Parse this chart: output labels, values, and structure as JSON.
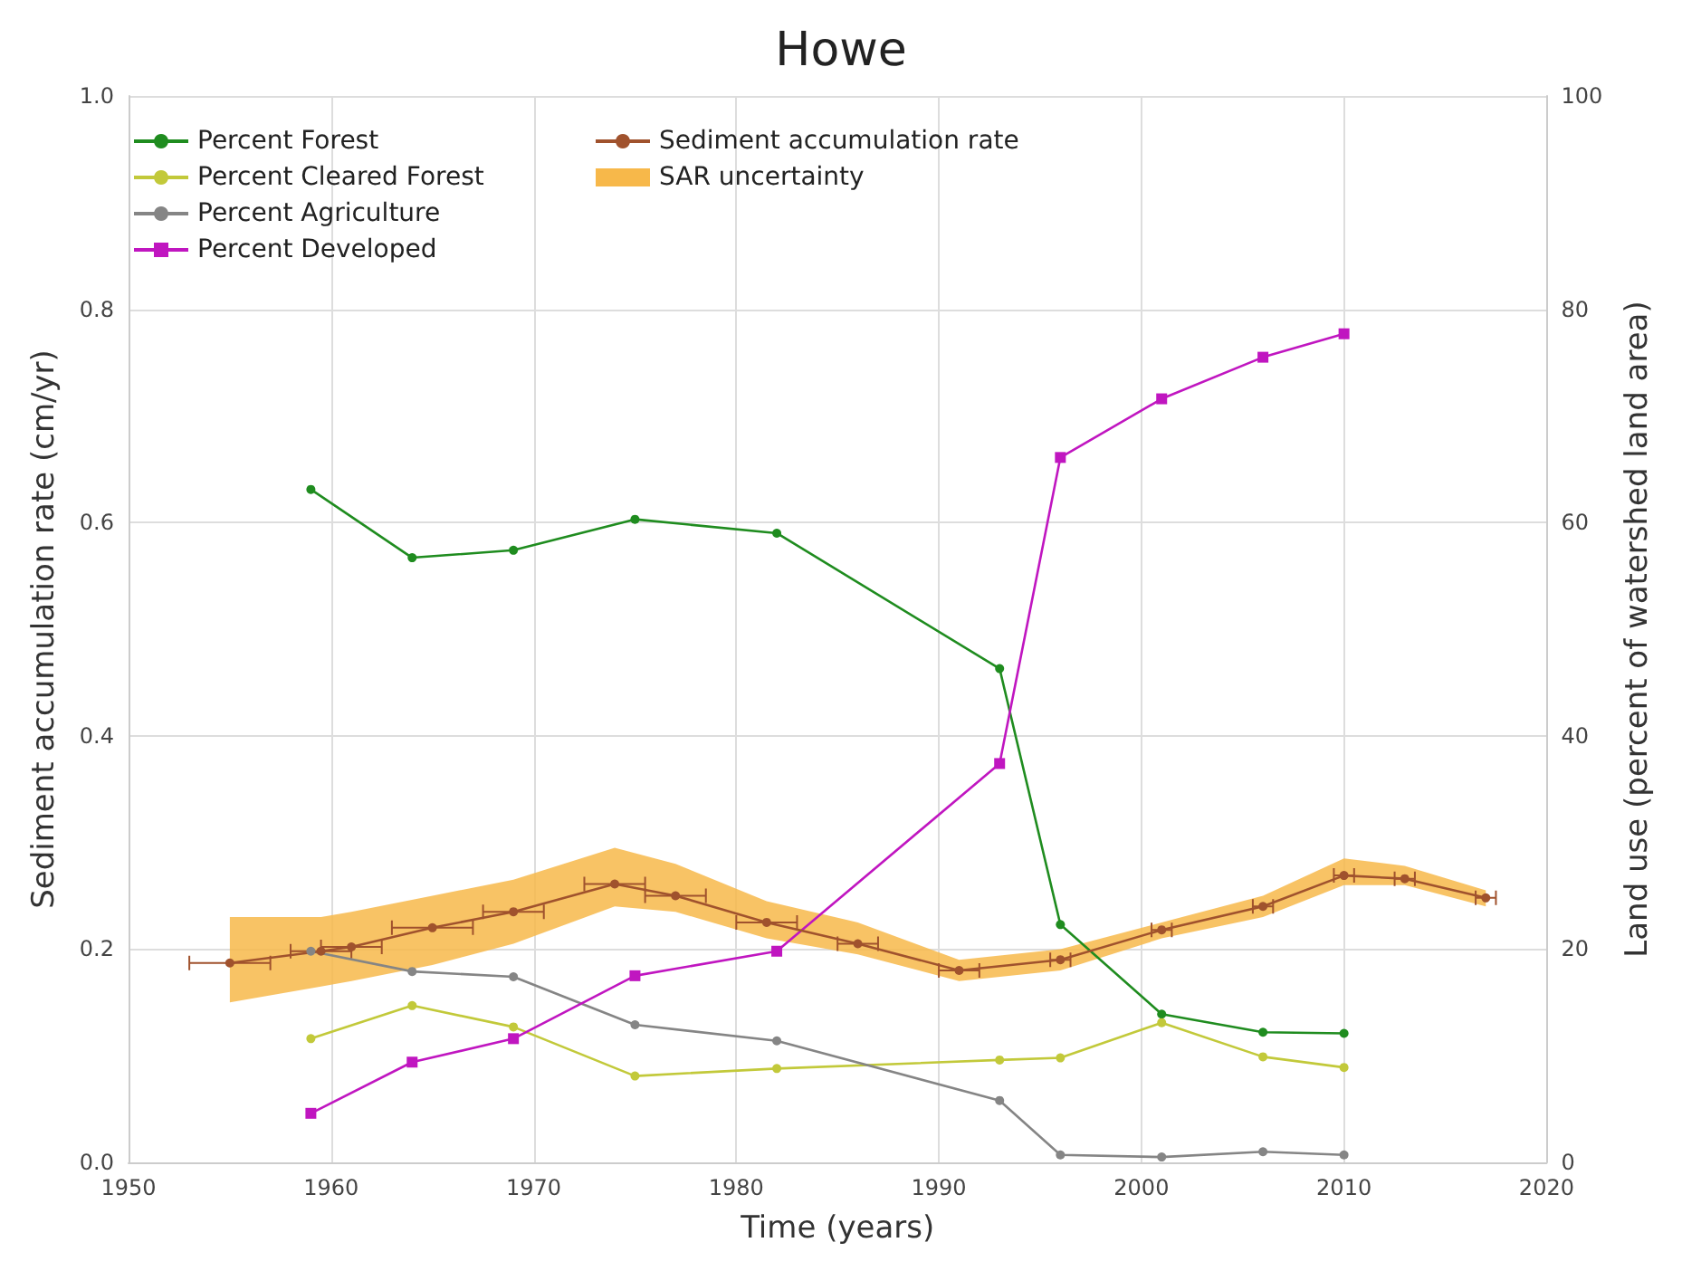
{
  "chart_data": {
    "type": "line",
    "title": "Howe",
    "xlabel": "Time (years)",
    "ylabel": "Sediment accumulation rate (cm/yr)",
    "y2label": "Land use (percent of watershed land area)",
    "xlim": [
      1950,
      2020
    ],
    "xticks": [
      1950,
      1960,
      1970,
      1980,
      1990,
      2000,
      2010,
      2020
    ],
    "ylim": [
      0,
      1
    ],
    "yticks": [
      {
        "value": 0,
        "label": "0.0"
      },
      {
        "value": 0.2,
        "label": "0.2"
      },
      {
        "value": 0.4,
        "label": "0.4"
      },
      {
        "value": 0.6,
        "label": "0.6"
      },
      {
        "value": 0.8,
        "label": "0.8"
      },
      {
        "value": 1,
        "label": "1.0"
      }
    ],
    "y2lim": [
      0,
      100
    ],
    "y2ticks": [
      0,
      20,
      40,
      60,
      80,
      100
    ],
    "grid": true,
    "legend": "top left",
    "series": [
      {
        "name": "Percent Forest",
        "color": "#1f8c1f",
        "axis": "y2",
        "marker": "circle",
        "x": [
          1959,
          1964,
          1969,
          1975,
          1982,
          1993,
          1996,
          2001,
          2006,
          2010
        ],
        "values": [
          63.1,
          56.7,
          57.4,
          60.3,
          59.0,
          46.3,
          22.3,
          13.9,
          12.2,
          12.1
        ]
      },
      {
        "name": "Percent Cleared Forest",
        "color": "#c2c93a",
        "axis": "y2",
        "marker": "circle",
        "x": [
          1959,
          1964,
          1969,
          1975,
          1982,
          1993,
          1996,
          2001,
          2006,
          2010
        ],
        "values": [
          11.6,
          14.7,
          12.7,
          8.1,
          8.8,
          9.6,
          9.8,
          13.1,
          9.9,
          8.9
        ]
      },
      {
        "name": "Percent Agriculture",
        "color": "#858585",
        "axis": "y2",
        "marker": "circle",
        "x": [
          1959,
          1964,
          1969,
          1975,
          1982,
          1993,
          1996,
          2001,
          2006,
          2010
        ],
        "values": [
          19.8,
          17.9,
          17.4,
          12.9,
          11.4,
          5.8,
          0.7,
          0.5,
          1.0,
          0.7
        ]
      },
      {
        "name": "Percent Developed",
        "color": "#c016c0",
        "axis": "y2",
        "marker": "square",
        "x": [
          1959,
          1964,
          1969,
          1975,
          1982,
          1993,
          1996,
          2001,
          2006,
          2010
        ],
        "values": [
          4.6,
          9.4,
          11.6,
          17.5,
          19.8,
          37.4,
          66.1,
          71.6,
          75.5,
          77.7
        ]
      },
      {
        "name": "Sediment accumulation rate",
        "color": "#a0522d",
        "marker": "circle",
        "x": [
          1955,
          1959.5,
          1961,
          1965,
          1969,
          1974,
          1977,
          1981.5,
          1986,
          1991,
          1996,
          2001,
          2006,
          2010,
          2013,
          2017
        ],
        "values": [
          0.187,
          0.198,
          0.202,
          0.22,
          0.235,
          0.261,
          0.25,
          0.225,
          0.205,
          0.18,
          0.19,
          0.218,
          0.24,
          0.269,
          0.266,
          0.248
        ],
        "xerrors": [
          2,
          1.5,
          1.5,
          2,
          1.5,
          1.5,
          1.5,
          1.5,
          1,
          1,
          0.5,
          0.5,
          0.5,
          0.5,
          0.5,
          0.5
        ]
      },
      {
        "name": "SAR uncertainty",
        "type": "area",
        "color": "#f7b84a",
        "x": [
          1955,
          1959.5,
          1961,
          1965,
          1969,
          1974,
          1977,
          1981.5,
          1986,
          1991,
          1996,
          2001,
          2006,
          2010,
          2013,
          2017
        ],
        "values": [
          null,
          null,
          null,
          null,
          null,
          null,
          null,
          null,
          null,
          null,
          null,
          null,
          null,
          null,
          null,
          null
        ],
        "lower": [
          0.15,
          0.165,
          0.17,
          0.185,
          0.205,
          0.24,
          0.235,
          0.21,
          0.195,
          0.17,
          0.18,
          0.21,
          0.23,
          0.26,
          0.26,
          0.24
        ],
        "upper": [
          0.23,
          0.23,
          0.235,
          0.25,
          0.265,
          0.295,
          0.28,
          0.245,
          0.225,
          0.19,
          0.2,
          0.225,
          0.25,
          0.285,
          0.278,
          0.255
        ]
      }
    ]
  }
}
